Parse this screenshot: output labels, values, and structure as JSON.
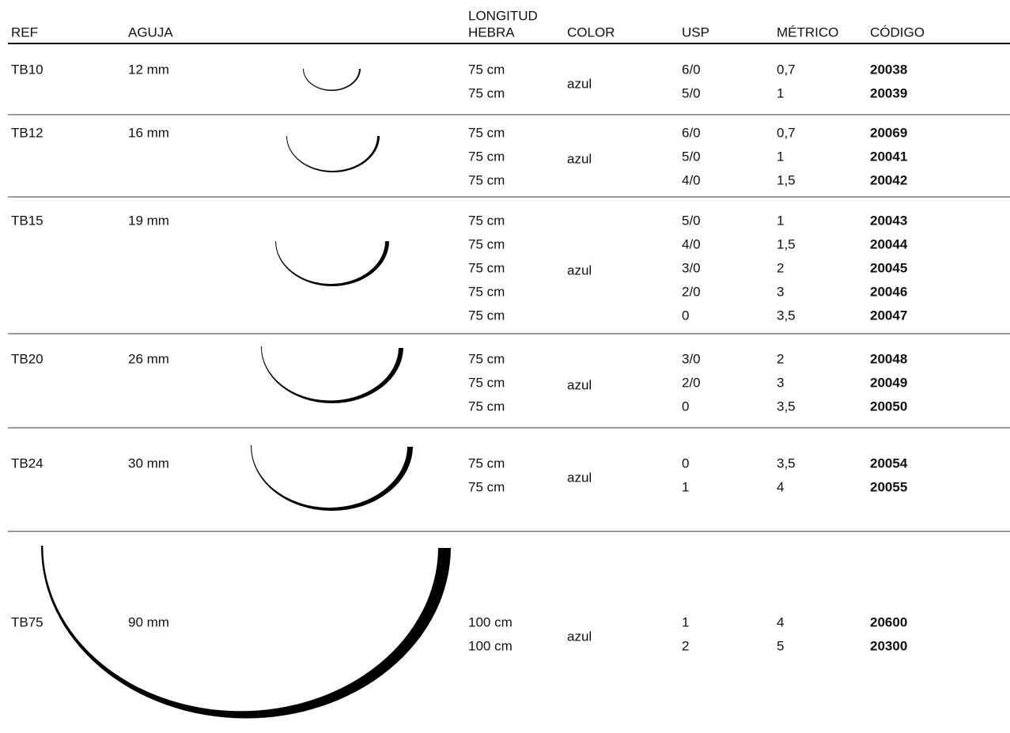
{
  "header": {
    "ref": "REF",
    "aguja": "AGUJA",
    "longitud_hebra": [
      "LONGITUD",
      "HEBRA"
    ],
    "color": "COLOR",
    "usp": "USP",
    "metrico": "MÉTRICO",
    "codigo": "CÓDIGO"
  },
  "rows": [
    {
      "ref": "TB10",
      "aguja": "12 mm",
      "color": "azul",
      "items": [
        {
          "longitud": "75 cm",
          "usp": "6/0",
          "metrico": "0,7",
          "codigo": "20038"
        },
        {
          "longitud": "75 cm",
          "usp": "5/0",
          "metrico": "1",
          "codigo": "20039"
        }
      ]
    },
    {
      "ref": "TB12",
      "aguja": "16 mm",
      "color": "azul",
      "items": [
        {
          "longitud": "75 cm",
          "usp": "6/0",
          "metrico": "0,7",
          "codigo": "20069"
        },
        {
          "longitud": "75 cm",
          "usp": "5/0",
          "metrico": "1",
          "codigo": "20041"
        },
        {
          "longitud": "75 cm",
          "usp": "4/0",
          "metrico": "1,5",
          "codigo": "20042"
        }
      ]
    },
    {
      "ref": "TB15",
      "aguja": "19 mm",
      "color": "azul",
      "items": [
        {
          "longitud": "75 cm",
          "usp": "5/0",
          "metrico": "1",
          "codigo": "20043"
        },
        {
          "longitud": "75 cm",
          "usp": "4/0",
          "metrico": "1,5",
          "codigo": "20044"
        },
        {
          "longitud": "75 cm",
          "usp": "3/0",
          "metrico": "2",
          "codigo": "20045"
        },
        {
          "longitud": "75 cm",
          "usp": "2/0",
          "metrico": "3",
          "codigo": "20046"
        },
        {
          "longitud": "75 cm",
          "usp": "0",
          "metrico": "3,5",
          "codigo": "20047"
        }
      ]
    },
    {
      "ref": "TB20",
      "aguja": "26 mm",
      "color": "azul",
      "items": [
        {
          "longitud": "75 cm",
          "usp": "3/0",
          "metrico": "2",
          "codigo": "20048"
        },
        {
          "longitud": "75 cm",
          "usp": "2/0",
          "metrico": "3",
          "codigo": "20049"
        },
        {
          "longitud": "75 cm",
          "usp": "0",
          "metrico": "3,5",
          "codigo": "20050"
        }
      ]
    },
    {
      "ref": "TB24",
      "aguja": "30 mm",
      "color": "azul",
      "items": [
        {
          "longitud": "75 cm",
          "usp": "0",
          "metrico": "3,5",
          "codigo": "20054"
        },
        {
          "longitud": "75 cm",
          "usp": "1",
          "metrico": "4",
          "codigo": "20055"
        }
      ]
    },
    {
      "ref": "TB75",
      "aguja": "90 mm",
      "color": "azul",
      "items": [
        {
          "longitud": "100 cm",
          "usp": "1",
          "metrico": "4",
          "codigo": "20600"
        },
        {
          "longitud": "100 cm",
          "usp": "2",
          "metrico": "5",
          "codigo": "20300"
        }
      ]
    }
  ]
}
